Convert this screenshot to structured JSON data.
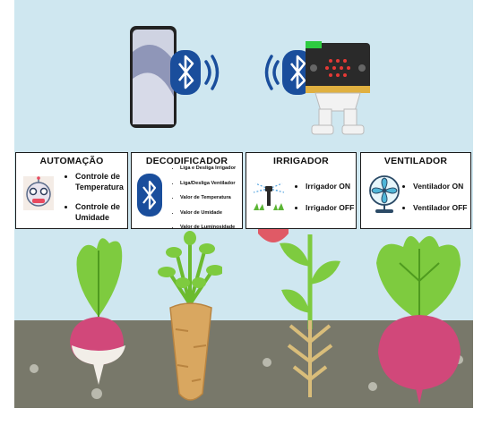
{
  "cards": [
    {
      "title": "AUTOMAÇÃO",
      "items": [
        "Controle de Temperatura",
        "Controle de Umidade"
      ],
      "icon": "robot-icon"
    },
    {
      "title": "DECODIFICADOR",
      "items": [
        "Liga e Desliga Irrigador",
        "Liga/Desliga Ventilador",
        "Valor de Temperatura",
        "Valor de Umidade",
        "Valor de Luminosidade"
      ],
      "icon": "bluetooth-icon"
    },
    {
      "title": "IRRIGADOR",
      "items": [
        "Irrigador ON",
        "Irrigador OFF"
      ],
      "icon": "sprinkler-icon"
    },
    {
      "title": "VENTILADOR",
      "items": [
        "Ventilador ON",
        "Ventilador OFF"
      ],
      "icon": "fan-icon"
    }
  ],
  "colors": {
    "sky": "#cfe7f0",
    "soil": "#78786a",
    "bluetooth": "#1a4e9c",
    "leaf": "#7ecb3f",
    "radish": "#d1487a",
    "carrot": "#d9a760"
  }
}
